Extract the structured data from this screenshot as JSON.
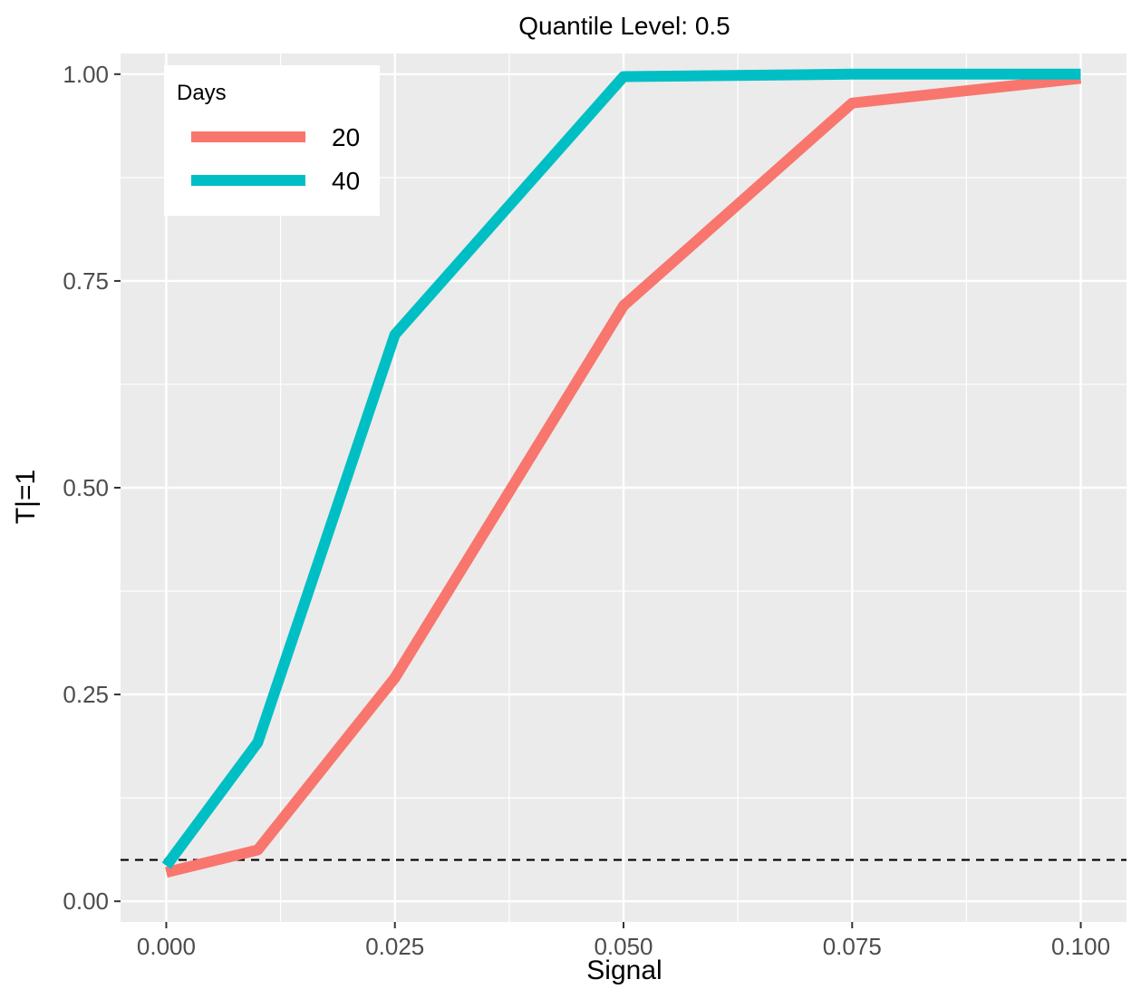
{
  "chart_data": {
    "type": "line",
    "title": "Quantile Level: 0.5",
    "xlabel": "Signal",
    "ylabel": "T|=1",
    "xlim": [
      -0.005,
      0.105
    ],
    "ylim": [
      -0.025,
      1.025
    ],
    "x_ticks": [
      0.0,
      0.025,
      0.05,
      0.075,
      0.1
    ],
    "x_tick_labels": [
      "0.000",
      "0.025",
      "0.050",
      "0.075",
      "0.100"
    ],
    "y_ticks": [
      0.0,
      0.25,
      0.5,
      0.75,
      1.0
    ],
    "y_tick_labels": [
      "0.00",
      "0.25",
      "0.50",
      "0.75",
      "1.00"
    ],
    "grid": true,
    "legend": {
      "title": "Days",
      "position": "top-left"
    },
    "reference_line": {
      "y": 0.05,
      "style": "dashed",
      "color": "#000000"
    },
    "series": [
      {
        "name": "20",
        "color": "#F8766D",
        "x": [
          0.0,
          0.01,
          0.025,
          0.05,
          0.075,
          0.1
        ],
        "values": [
          0.035,
          0.062,
          0.27,
          0.72,
          0.965,
          0.995
        ]
      },
      {
        "name": "40",
        "color": "#00BFC4",
        "x": [
          0.0,
          0.01,
          0.025,
          0.05,
          0.075,
          0.1
        ],
        "values": [
          0.043,
          0.192,
          0.685,
          0.997,
          1.0,
          1.0
        ]
      }
    ]
  }
}
